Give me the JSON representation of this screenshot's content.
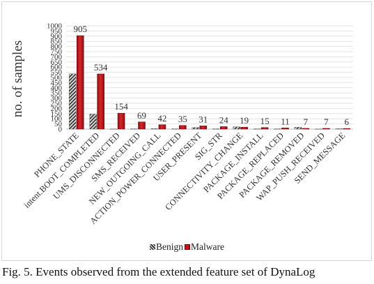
{
  "chart_data": {
    "type": "bar",
    "title": "",
    "xlabel": "",
    "ylabel": "no. of samples",
    "ylim": [
      0,
      1000
    ],
    "yticks": [
      0,
      50,
      100,
      150,
      200,
      250,
      300,
      350,
      400,
      450,
      500,
      550,
      600,
      650,
      700,
      750,
      800,
      850,
      900,
      950,
      1000
    ],
    "grid": true,
    "legend_position": "bottom",
    "categories": [
      "PHONE_STATE",
      "intent.BOOT_COMPLETED",
      "UMS_DISCONNECTED",
      "SMS_RECEIVED",
      "NEW_OUTGOING_CALL",
      "ACTION_POWER_CONNECTED",
      "USER_PRESENT",
      "SIG_STR",
      "CONNECTIVITY_CHANGE",
      "PACKAGE_INSTALL",
      "PACKAGE_REPLACED",
      "PACKAGE_REMOVED",
      "WAP_PUSH_RECEIVED",
      "SEND_MESSAGE"
    ],
    "series": [
      {
        "name": "Benign",
        "color": "#888888",
        "pattern": "hatched",
        "values": [
          535,
          145,
          2,
          3,
          5,
          3,
          15,
          3,
          22,
          3,
          3,
          18,
          2,
          4
        ]
      },
      {
        "name": "Malware",
        "color": "#c0161c",
        "values": [
          905,
          534,
          154,
          69,
          42,
          35,
          31,
          24,
          19,
          15,
          11,
          7,
          7,
          6
        ]
      }
    ],
    "data_labels": [
      "905",
      "534",
      "154",
      "69",
      "42",
      "35",
      "31",
      "24",
      "19",
      "15",
      "11",
      "7",
      "7",
      "6"
    ]
  },
  "caption": "Fig. 5. Events observed from the extended feature set of DynaLog"
}
